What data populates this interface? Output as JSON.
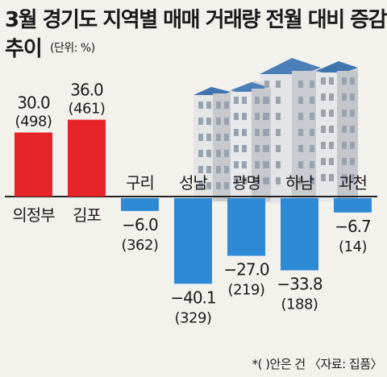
{
  "header": {
    "title_line1": "3월 경기도 지역별 매매 거래량 전월 대비 증감",
    "title_line2": "추이",
    "unit": "(단위: %)"
  },
  "footnote": "*(  )안은 건 〈자료: 집품〉",
  "colors": {
    "positive": "#e5242a",
    "negative": "#2f8ad6",
    "baseline": "#222222"
  },
  "chart_data": {
    "type": "bar",
    "categories": [
      "의정부",
      "김포",
      "구리",
      "성남",
      "광명",
      "하남",
      "과천"
    ],
    "values": [
      30.0,
      36.0,
      -6.0,
      -40.1,
      -27.0,
      -33.8,
      -6.7
    ],
    "value_labels": [
      "30.0",
      "36.0",
      "−6.0",
      "−40.1",
      "−27.0",
      "−33.8",
      "−6.7"
    ],
    "count_labels": [
      "(498)",
      "(461)",
      "(362)",
      "(329)",
      "(219)",
      "(188)",
      "(14)"
    ],
    "title": "3월 경기도 지역별 매매 거래량 전월 대비 증감 추이",
    "ylabel": "",
    "xlabel": "",
    "ylim": [
      -45,
      40
    ],
    "grid": false,
    "legend": "none"
  }
}
